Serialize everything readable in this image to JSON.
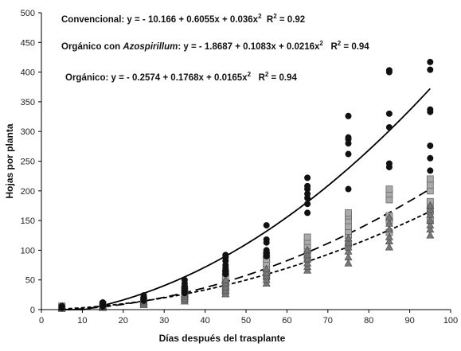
{
  "chart_data": {
    "type": "scatter",
    "title": "",
    "xlabel": "Días después del trasplante",
    "ylabel": "Hojas por planta",
    "xlim": [
      0,
      100
    ],
    "ylim": [
      0,
      500
    ],
    "xticks": [
      "0",
      "10",
      "20",
      "30",
      "40",
      "50",
      "60",
      "70",
      "80",
      "90",
      "100"
    ],
    "yticks": [
      "0",
      "50",
      "100",
      "150",
      "200",
      "250",
      "300",
      "350",
      "400",
      "450",
      "500"
    ],
    "grid": false,
    "annotations": [
      {
        "id": "conv",
        "parts": [
          {
            "text": "Convencional: y = - 10.166 + 0.6055x + 0.036x",
            "style": "normal"
          },
          {
            "text": "2",
            "style": "sup"
          },
          {
            "text": "  R",
            "style": "normal"
          },
          {
            "text": "2",
            "style": "sup"
          },
          {
            "text": " = 0.92",
            "style": "normal"
          }
        ]
      },
      {
        "id": "org-azo",
        "parts": [
          {
            "text": "Orgánico con ",
            "style": "normal"
          },
          {
            "text": "Azospirillum",
            "style": "italic"
          },
          {
            "text": ": y = - 1.8687 + 0.1083x + 0.0216x",
            "style": "normal"
          },
          {
            "text": "2",
            "style": "sup"
          },
          {
            "text": "   R",
            "style": "normal"
          },
          {
            "text": "2",
            "style": "sup"
          },
          {
            "text": " = 0.94",
            "style": "normal"
          }
        ]
      },
      {
        "id": "org",
        "parts": [
          {
            "text": "Orgánico: y = - 0.2574 + 0.1768x + 0.0165x",
            "style": "normal"
          },
          {
            "text": "2",
            "style": "sup"
          },
          {
            "text": "   R",
            "style": "normal"
          },
          {
            "text": "2",
            "style": "sup"
          },
          {
            "text": " = 0.94",
            "style": "normal"
          }
        ]
      }
    ],
    "series": [
      {
        "key": "convencional",
        "marker": "circle",
        "color": "#111111",
        "line_style": "solid",
        "fit": {
          "a": -10.166,
          "b": 0.6055,
          "c": 0.036,
          "r2": 0.92
        },
        "points": [
          [
            5,
            3
          ],
          [
            5,
            5
          ],
          [
            5,
            6
          ],
          [
            15,
            6
          ],
          [
            15,
            8
          ],
          [
            15,
            10
          ],
          [
            15,
            12
          ],
          [
            25,
            15
          ],
          [
            25,
            18
          ],
          [
            25,
            20
          ],
          [
            25,
            24
          ],
          [
            35,
            28
          ],
          [
            35,
            32
          ],
          [
            35,
            36
          ],
          [
            35,
            40
          ],
          [
            35,
            44
          ],
          [
            35,
            50
          ],
          [
            45,
            60
          ],
          [
            45,
            65
          ],
          [
            45,
            70
          ],
          [
            45,
            75
          ],
          [
            45,
            82
          ],
          [
            45,
            88
          ],
          [
            45,
            92
          ],
          [
            55,
            90
          ],
          [
            55,
            95
          ],
          [
            55,
            100
          ],
          [
            55,
            113
          ],
          [
            55,
            118
          ],
          [
            55,
            142
          ],
          [
            65,
            163
          ],
          [
            65,
            178
          ],
          [
            65,
            188
          ],
          [
            65,
            195
          ],
          [
            65,
            203
          ],
          [
            65,
            208
          ],
          [
            65,
            222
          ],
          [
            75,
            203
          ],
          [
            75,
            262
          ],
          [
            75,
            280
          ],
          [
            75,
            287
          ],
          [
            75,
            290
          ],
          [
            75,
            326
          ],
          [
            85,
            240
          ],
          [
            85,
            246
          ],
          [
            85,
            307
          ],
          [
            85,
            330
          ],
          [
            85,
            400
          ],
          [
            85,
            403
          ],
          [
            95,
            234
          ],
          [
            95,
            255
          ],
          [
            95,
            276
          ],
          [
            95,
            333
          ],
          [
            95,
            337
          ],
          [
            95,
            404
          ],
          [
            95,
            417
          ]
        ]
      },
      {
        "key": "organico-azospirillum",
        "marker": "square",
        "color": "#aaaaaa",
        "line_style": "long-dash",
        "fit": {
          "a": -1.8687,
          "b": 0.1083,
          "c": 0.0216,
          "r2": 0.94
        },
        "points": [
          [
            5,
            2
          ],
          [
            5,
            4
          ],
          [
            5,
            6
          ],
          [
            15,
            4
          ],
          [
            15,
            6
          ],
          [
            15,
            9
          ],
          [
            25,
            10
          ],
          [
            25,
            13
          ],
          [
            25,
            16
          ],
          [
            35,
            18
          ],
          [
            35,
            22
          ],
          [
            35,
            26
          ],
          [
            35,
            30
          ],
          [
            35,
            34
          ],
          [
            45,
            30
          ],
          [
            45,
            36
          ],
          [
            45,
            42
          ],
          [
            45,
            48
          ],
          [
            45,
            55
          ],
          [
            45,
            62
          ],
          [
            55,
            55
          ],
          [
            55,
            62
          ],
          [
            55,
            70
          ],
          [
            55,
            78
          ],
          [
            55,
            85
          ],
          [
            55,
            92
          ],
          [
            65,
            85
          ],
          [
            65,
            92
          ],
          [
            65,
            100
          ],
          [
            65,
            108
          ],
          [
            65,
            115
          ],
          [
            65,
            122
          ],
          [
            75,
            110
          ],
          [
            75,
            125
          ],
          [
            75,
            132
          ],
          [
            75,
            140
          ],
          [
            75,
            150
          ],
          [
            75,
            158
          ],
          [
            75,
            163
          ],
          [
            85,
            130
          ],
          [
            85,
            150
          ],
          [
            85,
            158
          ],
          [
            85,
            185
          ],
          [
            85,
            195
          ],
          [
            85,
            203
          ],
          [
            95,
            150
          ],
          [
            95,
            165
          ],
          [
            95,
            175
          ],
          [
            95,
            182
          ],
          [
            95,
            200
          ],
          [
            95,
            210
          ],
          [
            95,
            220
          ]
        ]
      },
      {
        "key": "organico",
        "marker": "triangle",
        "color": "#777777",
        "line_style": "short-dash",
        "fit": {
          "a": -0.2574,
          "b": 0.1768,
          "c": 0.0165,
          "r2": 0.94
        },
        "points": [
          [
            5,
            2
          ],
          [
            5,
            4
          ],
          [
            15,
            3
          ],
          [
            15,
            5
          ],
          [
            15,
            7
          ],
          [
            25,
            8
          ],
          [
            25,
            11
          ],
          [
            25,
            14
          ],
          [
            35,
            14
          ],
          [
            35,
            18
          ],
          [
            35,
            22
          ],
          [
            35,
            26
          ],
          [
            45,
            26
          ],
          [
            45,
            32
          ],
          [
            45,
            38
          ],
          [
            45,
            44
          ],
          [
            45,
            50
          ],
          [
            55,
            44
          ],
          [
            55,
            50
          ],
          [
            55,
            56
          ],
          [
            55,
            62
          ],
          [
            55,
            68
          ],
          [
            65,
            66
          ],
          [
            65,
            72
          ],
          [
            65,
            78
          ],
          [
            65,
            85
          ],
          [
            65,
            92
          ],
          [
            65,
            100
          ],
          [
            75,
            78
          ],
          [
            75,
            88
          ],
          [
            75,
            98
          ],
          [
            75,
            105
          ],
          [
            75,
            112
          ],
          [
            75,
            120
          ],
          [
            85,
            105
          ],
          [
            85,
            115
          ],
          [
            85,
            122
          ],
          [
            85,
            135
          ],
          [
            85,
            145
          ],
          [
            85,
            155
          ],
          [
            95,
            125
          ],
          [
            95,
            135
          ],
          [
            95,
            142
          ],
          [
            95,
            150
          ],
          [
            95,
            160
          ],
          [
            95,
            168
          ],
          [
            95,
            175
          ]
        ]
      }
    ]
  }
}
